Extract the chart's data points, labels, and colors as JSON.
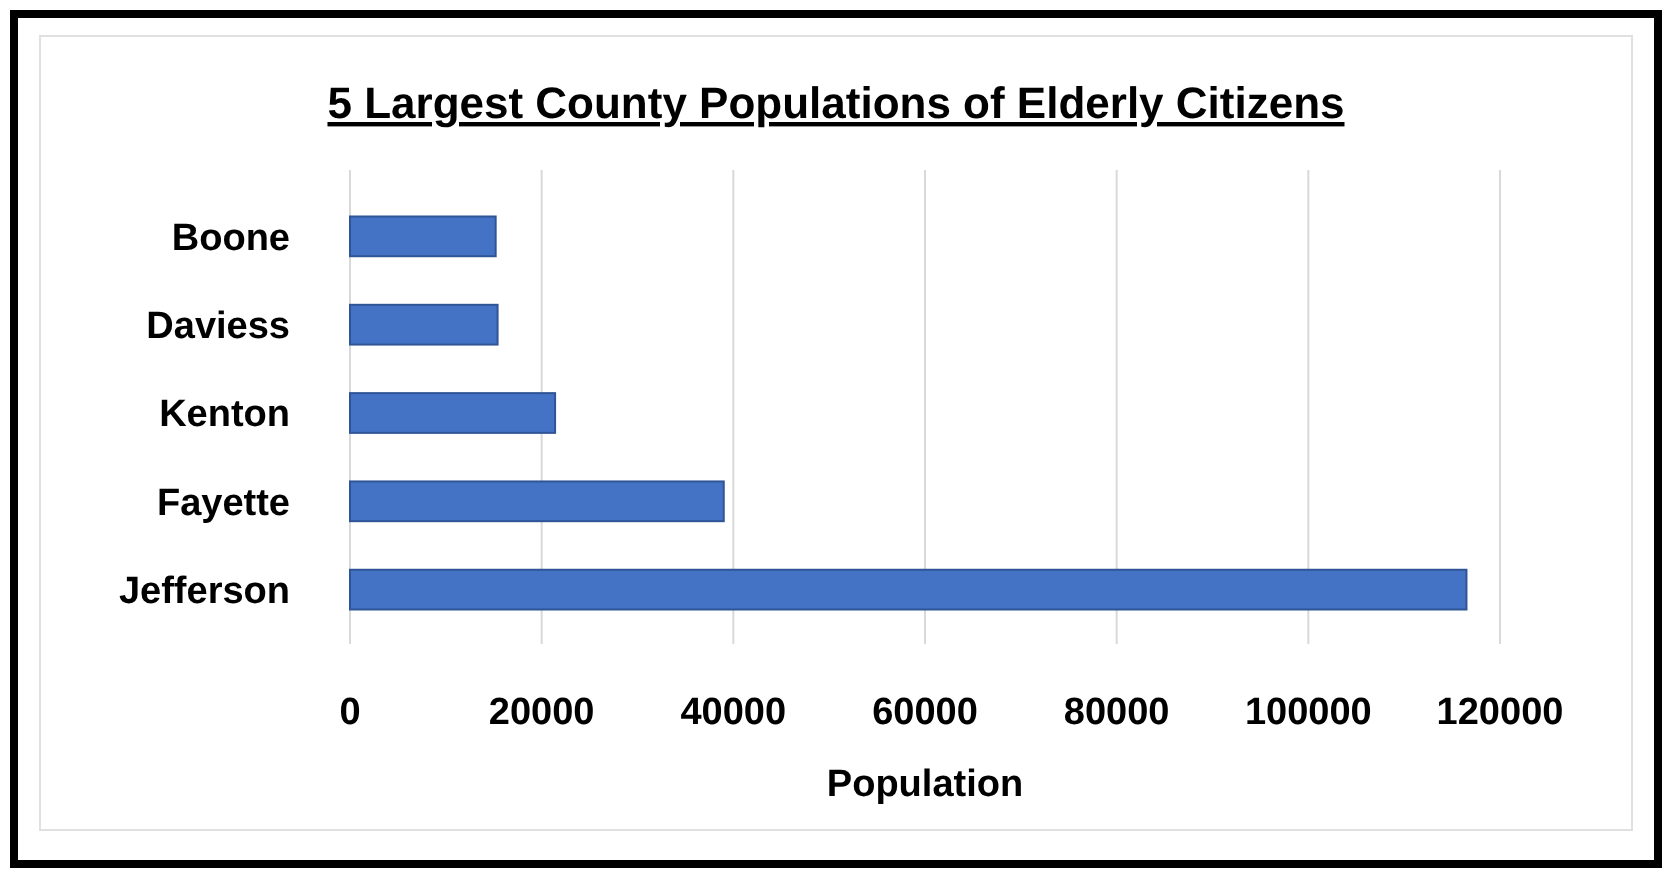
{
  "chart_data": {
    "type": "bar",
    "orientation": "horizontal",
    "title": "5 Largest County Populations of Elderly Citizens",
    "xlabel": "Population",
    "categories": [
      "Boone",
      "Daviess",
      "Kenton",
      "Fayette",
      "Jefferson"
    ],
    "values": [
      15200,
      15400,
      21400,
      39000,
      116500
    ],
    "color": "#4472c4",
    "xlim": [
      0,
      120000
    ],
    "xticks": [
      0,
      20000,
      40000,
      60000,
      80000,
      100000,
      120000
    ],
    "grid": "x"
  }
}
